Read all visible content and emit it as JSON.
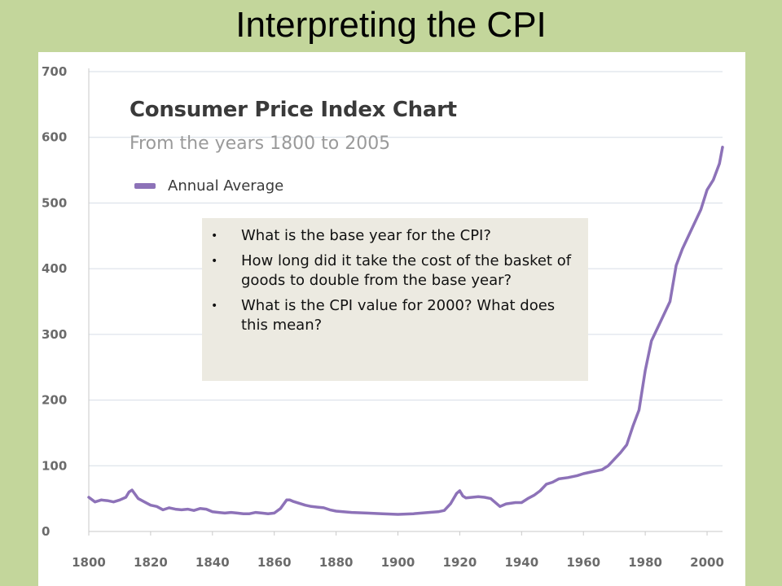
{
  "slide": {
    "title": "Interpreting the CPI"
  },
  "questions": [
    "What is the base year for the CPI?",
    "How long did it take the cost of the basket of goods to double from the base year?",
    "What is the CPI value for 2000?  What does this mean?"
  ],
  "colors": {
    "background": "#c3d69b",
    "series_line": "#8d72b8",
    "grid": "#d6dde6",
    "question_box": "#eceae1"
  },
  "chart_data": {
    "type": "line",
    "title": "Consumer Price Index Chart",
    "subtitle": "From the years 1800 to 2005",
    "xlabel": "",
    "ylabel": "",
    "xlim": [
      1800,
      2005
    ],
    "ylim": [
      0,
      700
    ],
    "xticks": [
      1800,
      1820,
      1840,
      1860,
      1880,
      1900,
      1920,
      1940,
      1960,
      1980,
      2000
    ],
    "yticks": [
      0,
      100,
      200,
      300,
      400,
      500,
      600,
      700
    ],
    "grid": "horizontal",
    "legend_position": "top-left",
    "series": [
      {
        "name": "Annual Average",
        "x": [
          1800,
          1802,
          1804,
          1806,
          1808,
          1810,
          1812,
          1813,
          1814,
          1816,
          1818,
          1820,
          1822,
          1824,
          1826,
          1828,
          1830,
          1832,
          1834,
          1836,
          1838,
          1840,
          1842,
          1844,
          1846,
          1848,
          1850,
          1852,
          1854,
          1856,
          1858,
          1860,
          1862,
          1864,
          1865,
          1866,
          1868,
          1870,
          1872,
          1874,
          1876,
          1878,
          1880,
          1885,
          1890,
          1895,
          1900,
          1905,
          1910,
          1913,
          1915,
          1917,
          1918,
          1919,
          1920,
          1921,
          1922,
          1924,
          1926,
          1928,
          1930,
          1932,
          1933,
          1935,
          1938,
          1940,
          1942,
          1944,
          1946,
          1948,
          1950,
          1952,
          1955,
          1958,
          1960,
          1963,
          1966,
          1968,
          1970,
          1972,
          1974,
          1976,
          1978,
          1980,
          1982,
          1985,
          1988,
          1990,
          1992,
          1995,
          1998,
          2000,
          2002,
          2004,
          2005
        ],
        "y": [
          52,
          45,
          48,
          47,
          45,
          48,
          52,
          60,
          63,
          50,
          45,
          40,
          38,
          33,
          36,
          34,
          33,
          34,
          32,
          35,
          34,
          30,
          29,
          28,
          29,
          28,
          27,
          27,
          29,
          28,
          27,
          28,
          35,
          48,
          48,
          46,
          43,
          40,
          38,
          37,
          36,
          33,
          31,
          29,
          28,
          27,
          26,
          27,
          29,
          30,
          32,
          42,
          50,
          58,
          62,
          54,
          51,
          52,
          53,
          52,
          50,
          42,
          38,
          42,
          44,
          44,
          50,
          55,
          62,
          72,
          75,
          80,
          82,
          85,
          88,
          91,
          94,
          100,
          110,
          120,
          132,
          160,
          185,
          245,
          290,
          320,
          350,
          405,
          430,
          460,
          490,
          520,
          535,
          560,
          585
        ]
      }
    ]
  }
}
